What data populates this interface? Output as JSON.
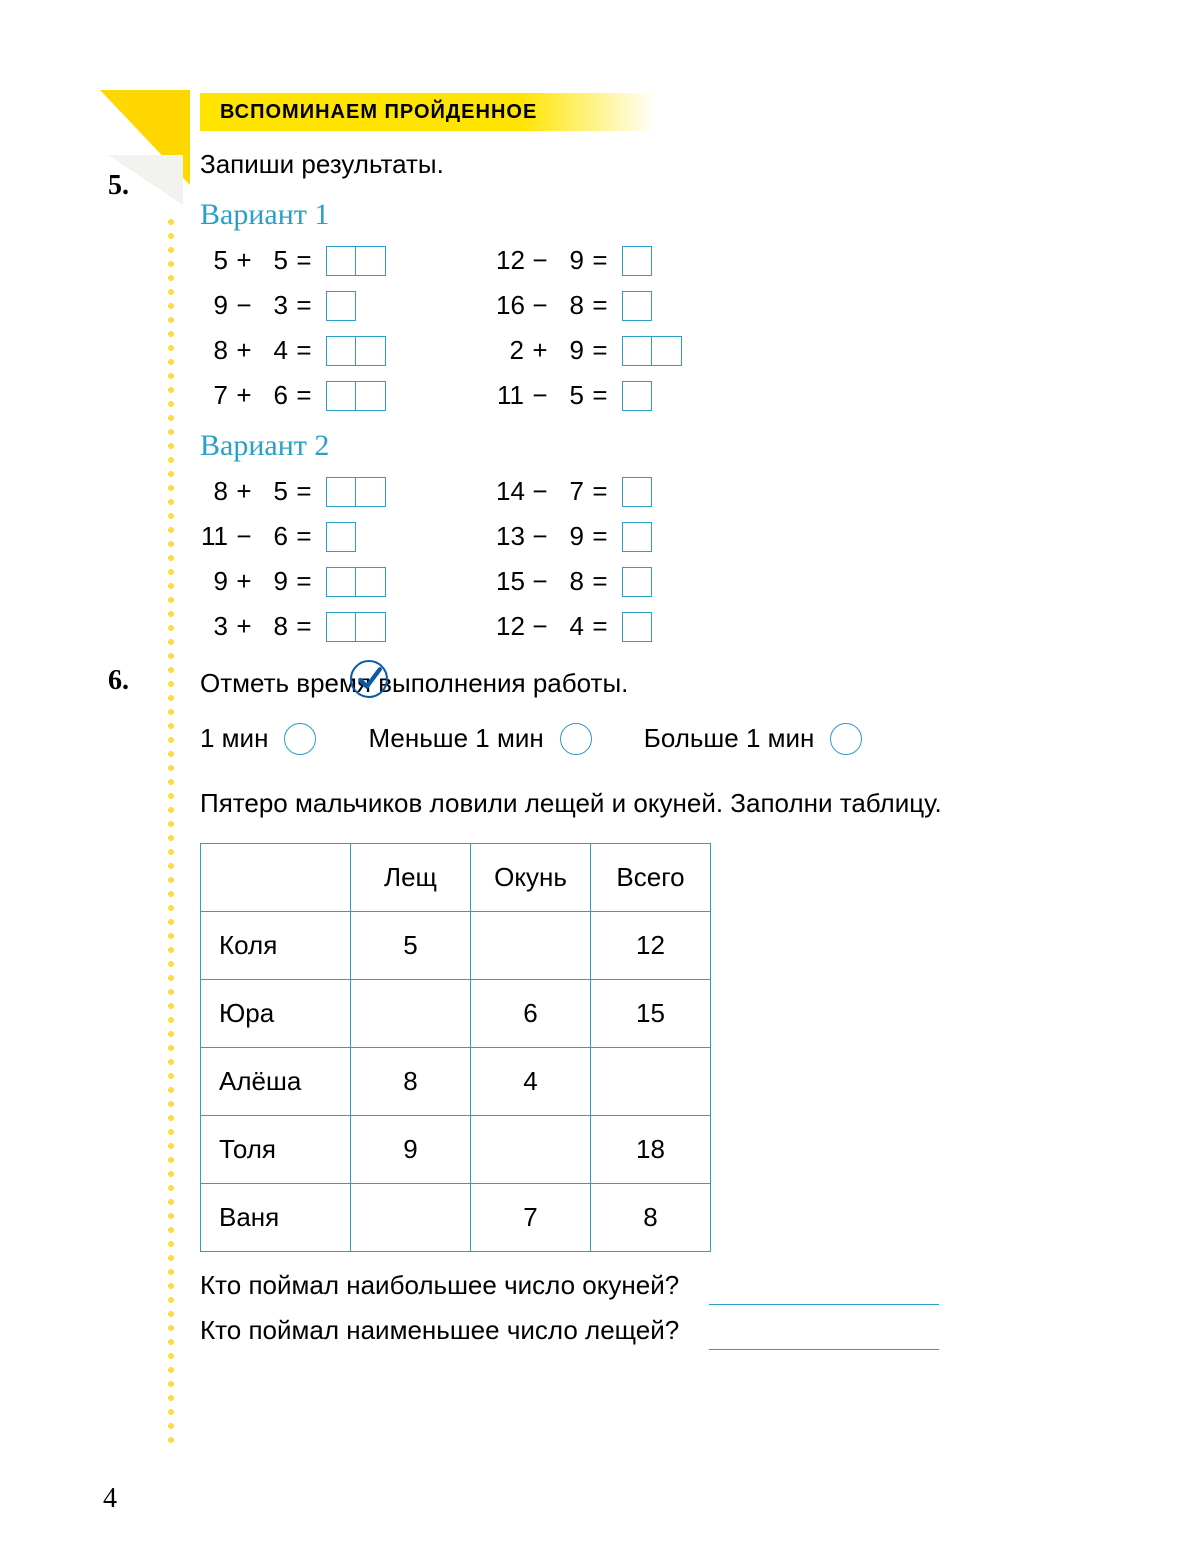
{
  "colors": {
    "accent_teal": "#2a9fc9",
    "accent_yellow": "#ffe400",
    "variant_title": "#2a9fc9",
    "check_stroke": "#0b5aa5",
    "text": "#000000",
    "background": "#ffffff"
  },
  "section_header": "ВСПОМИНАЕМ ПРОЙДЕННОЕ",
  "exercise5": {
    "number": "5.",
    "prompt": "Запиши результаты.",
    "variant1": {
      "title": "Вариант 1",
      "left": [
        {
          "a": "5",
          "op": "+",
          "b": "5",
          "boxes": 2
        },
        {
          "a": "9",
          "op": "−",
          "b": "3",
          "boxes": 1
        },
        {
          "a": "8",
          "op": "+",
          "b": "4",
          "boxes": 2
        },
        {
          "a": "7",
          "op": "+",
          "b": "6",
          "boxes": 2
        }
      ],
      "right": [
        {
          "a": "12",
          "op": "−",
          "b": "9",
          "boxes": 1
        },
        {
          "a": "16",
          "op": "−",
          "b": "8",
          "boxes": 1
        },
        {
          "a": "2",
          "op": "+",
          "b": "9",
          "boxes": 2
        },
        {
          "a": "11",
          "op": "−",
          "b": "5",
          "boxes": 1
        }
      ]
    },
    "variant2": {
      "title": "Вариант 2",
      "left": [
        {
          "a": "8",
          "op": "+",
          "b": "5",
          "boxes": 2
        },
        {
          "a": "11",
          "op": "−",
          "b": "6",
          "boxes": 1
        },
        {
          "a": "9",
          "op": "+",
          "b": "9",
          "boxes": 2
        },
        {
          "a": "3",
          "op": "+",
          "b": "8",
          "boxes": 2
        }
      ],
      "right": [
        {
          "a": "14",
          "op": "−",
          "b": "7",
          "boxes": 1
        },
        {
          "a": "13",
          "op": "−",
          "b": "9",
          "boxes": 1
        },
        {
          "a": "15",
          "op": "−",
          "b": "8",
          "boxes": 1
        },
        {
          "a": "12",
          "op": "−",
          "b": "4",
          "boxes": 1
        }
      ]
    },
    "time_prompt": "Отметь время выполнения работы.",
    "time_options": [
      "1 мин",
      "Меньше 1 мин",
      "Больше 1 мин"
    ]
  },
  "exercise6": {
    "number": "6.",
    "prompt": "Пятеро мальчиков ловили лещей и окуней. Заполни таблицу.",
    "table": {
      "headers": [
        "",
        "Лещ",
        "Окунь",
        "Всего"
      ],
      "rows": [
        [
          "Коля",
          "5",
          "",
          "12"
        ],
        [
          "Юра",
          "",
          "6",
          "15"
        ],
        [
          "Алёша",
          "8",
          "4",
          ""
        ],
        [
          "Толя",
          "9",
          "",
          "18"
        ],
        [
          "Ваня",
          "",
          "7",
          "8"
        ]
      ]
    },
    "q1": "Кто поймал наибольшее число окуней?",
    "q2": "Кто поймал наименьшее число лещей?"
  },
  "page_number": "4"
}
